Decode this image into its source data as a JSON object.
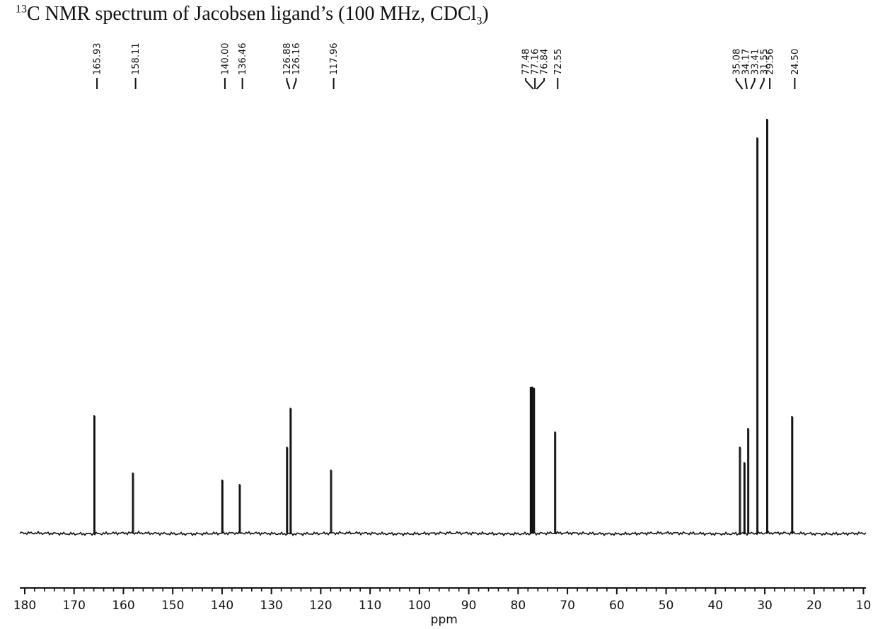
{
  "title": {
    "superscript": "13",
    "main": "C NMR spectrum of Jacobsen ligand’s (100 MHz, CDCl",
    "subscript": "3",
    "tail": ")"
  },
  "chart_data": {
    "type": "line",
    "title": "13C NMR spectrum of Jacobsen ligand’s (100 MHz, CDCl3)",
    "xlabel": "ppm",
    "ylabel": "",
    "x_reversed": true,
    "xlim": [
      181,
      9.5
    ],
    "ylim": [
      0,
      100
    ],
    "baseline": 0,
    "grid": false,
    "x_ticks": [
      180,
      170,
      160,
      150,
      140,
      130,
      120,
      110,
      100,
      90,
      80,
      70,
      60,
      50,
      40,
      30,
      20,
      10
    ],
    "x_tick_labels": [
      "180",
      "170",
      "160",
      "150",
      "140",
      "130",
      "120",
      "110",
      "100",
      "90",
      "80",
      "70",
      "60",
      "50",
      "40",
      "30",
      "20",
      "10"
    ],
    "peaks": [
      {
        "ppm": 165.93,
        "label": "165.93",
        "intensity": 28.5
      },
      {
        "ppm": 158.11,
        "label": "158.11",
        "intensity": 14.7
      },
      {
        "ppm": 140.0,
        "label": "140.00",
        "intensity": 13.0
      },
      {
        "ppm": 136.46,
        "label": "136.46",
        "intensity": 11.9
      },
      {
        "ppm": 126.88,
        "label": "126.88",
        "intensity": 20.9
      },
      {
        "ppm": 126.16,
        "label": "126.16",
        "intensity": 30.3
      },
      {
        "ppm": 117.96,
        "label": "117.96",
        "intensity": 15.4
      },
      {
        "ppm": 77.48,
        "label": "77.48",
        "intensity": 35.3
      },
      {
        "ppm": 77.16,
        "label": "77.16",
        "intensity": 35.4
      },
      {
        "ppm": 76.84,
        "label": "76.84",
        "intensity": 35.2
      },
      {
        "ppm": 72.55,
        "label": "72.55",
        "intensity": 24.6
      },
      {
        "ppm": 35.08,
        "label": "35.08",
        "intensity": 20.9
      },
      {
        "ppm": 34.17,
        "label": "34.17",
        "intensity": 17.2
      },
      {
        "ppm": 33.41,
        "label": "33.41",
        "intensity": 25.4
      },
      {
        "ppm": 31.55,
        "label": "31.55",
        "intensity": 95.5
      },
      {
        "ppm": 29.56,
        "label": "29.56",
        "intensity": 100.0
      },
      {
        "ppm": 24.5,
        "label": "24.50",
        "intensity": 28.3
      }
    ]
  }
}
